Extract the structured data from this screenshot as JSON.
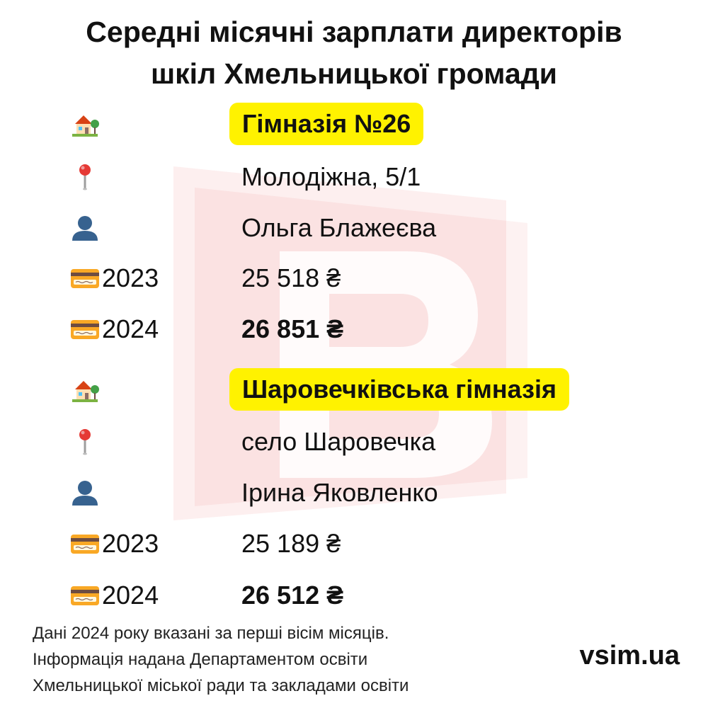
{
  "title": {
    "line1": "Середні місячні зарплати директорів",
    "line2": "шкіл Хмельницької громади"
  },
  "schools": [
    {
      "name": "Гімназія №26",
      "address": "Молодіжна, 5/1",
      "director": "Ольга Блажеєва",
      "salary_2023_year": "2023",
      "salary_2023": "25 518 ₴",
      "salary_2024_year": "2024",
      "salary_2024": "26 851 ₴"
    },
    {
      "name": "Шаровечківська гімназія",
      "address": "село Шаровечка",
      "director": "Ірина Яковленко",
      "salary_2023_year": "2023",
      "salary_2023": "25 189 ₴",
      "salary_2024_year": "2024",
      "salary_2024": "26 512 ₴"
    }
  ],
  "icons": {
    "school": "house-with-garden-icon",
    "location": "round-pushpin-icon",
    "person": "bust-silhouette-icon",
    "salary": "credit-card-icon"
  },
  "footer": {
    "line1": "Дані 2024 року вказані за перші вісім місяців.",
    "line2": "Інформація надана Департаментом освіти",
    "line3": "Хмельницької міської ради та закладами освіти"
  },
  "brand": "vsim.ua",
  "colors": {
    "highlight": "#fff200",
    "watermark": "#e11d1d",
    "text": "#111111"
  }
}
